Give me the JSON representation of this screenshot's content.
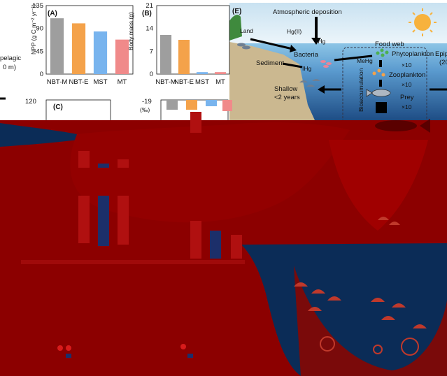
{
  "panels": {
    "A": {
      "letter": "(A)",
      "ylabel": "NPP (g C m⁻² yr⁻¹)",
      "yticks": [
        "0",
        "45",
        "90",
        "135"
      ],
      "categories": [
        "NBT-M",
        "NBT-E",
        "MST",
        "MT"
      ]
    },
    "B": {
      "letter": "(B)",
      "ylabel": "Body mass (g)",
      "yticks": [
        "0",
        "7",
        "14",
        "21"
      ],
      "categories": [
        "NBT-M",
        "NBT-E",
        "MST",
        "MT"
      ]
    },
    "C": {
      "letter": "(C)",
      "yticks": [
        "120"
      ]
    },
    "D": {
      "ylabel": "(‰)",
      "yticks": [
        "-19"
      ]
    }
  },
  "diagram": {
    "letter": "(E)",
    "atmospheric": "Atmospheric deposition",
    "land": "Land",
    "hg0": "Hg(II)",
    "ihg_top": "IHg",
    "bacteria": "Bacteria",
    "sediment": "Sediment",
    "ihg_mid": "IHg",
    "mehg": "MeHg",
    "foodweb": "Food web",
    "phytoplankton": "Phytoplankton",
    "zooplankton": "Zooplankton",
    "prey": "Prey",
    "x10_1": "×10",
    "x10_2": "×10",
    "x10_3": "×10",
    "shallow_1": "Shallow",
    "shallow_2": "<2 years",
    "bioaccumulation": "Bioaccumulation",
    "epi_1": "Epip",
    "epi_2": "(20",
    "pelagic_1": "pelagic",
    "pelagic_2": "0 m)"
  },
  "chart_data": [
    {
      "type": "bar",
      "title": "(A)",
      "ylabel": "NPP (g C m⁻² yr⁻¹)",
      "categories": [
        "NBT-M",
        "NBT-E",
        "MST",
        "MT"
      ],
      "values": [
        110,
        100,
        84,
        68
      ],
      "ylim": [
        0,
        135
      ],
      "colors": [
        "#9e9e9e",
        "#f4a24a",
        "#78b4ee",
        "#f08a8a"
      ]
    },
    {
      "type": "bar",
      "title": "(B)",
      "ylabel": "Body mass (g)",
      "categories": [
        "NBT-M",
        "NBT-E",
        "MST",
        "MT"
      ],
      "values": [
        12,
        10.5,
        0.6,
        0.6
      ],
      "ylim": [
        0,
        21
      ],
      "colors": [
        "#9e9e9e",
        "#f4a24a",
        "#78b4ee",
        "#f08a8a"
      ]
    }
  ],
  "colors": {
    "overlay_red": "#8c0000",
    "deep_blue": "#0b2c57",
    "mid_blue": "#1a4f86",
    "sand": "#cbb890",
    "sky_top": "#cfe5f2",
    "sky_bottom": "#eef6fb",
    "grass": "#3f8a3d",
    "sun": "#f7b23d"
  },
  "icons": [
    "sun-icon",
    "fish-icon",
    "jellyfish-icon",
    "phytoplankton-icon",
    "zooplankton-icon",
    "bacteria-icon"
  ]
}
